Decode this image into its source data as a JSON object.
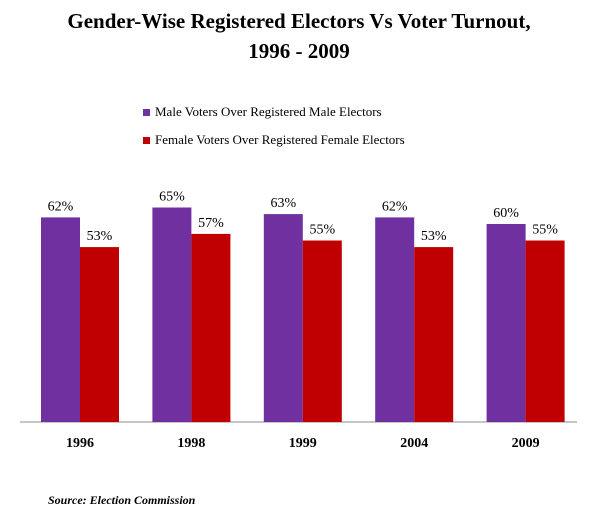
{
  "chart_data": {
    "type": "bar",
    "title": "Gender-Wise Registered Electors Vs Voter Turnout, 1996 - 2009",
    "categories": [
      "1996",
      "1998",
      "1999",
      "2004",
      "2009"
    ],
    "series": [
      {
        "name": "Male Voters Over Registered Male Electors",
        "values": [
          62,
          65,
          63,
          62,
          60
        ],
        "color": "#7030A0"
      },
      {
        "name": "Female Voters Over Registered Female Electors",
        "values": [
          53,
          57,
          55,
          53,
          55
        ],
        "color": "#C00000"
      }
    ],
    "ylim": [
      0,
      100
    ],
    "grid": false,
    "legend_position": "top",
    "value_label_suffix": "%"
  },
  "source": "Source: Election Commission"
}
